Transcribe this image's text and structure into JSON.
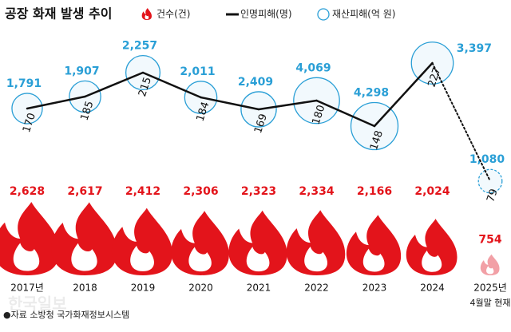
{
  "chart_data": {
    "type": "combo",
    "title": "공장 화재 발생 추이",
    "categories": [
      "2017년",
      "2018",
      "2019",
      "2020",
      "2021",
      "2022",
      "2023",
      "2024",
      "2025년"
    ],
    "category_note": "4월말 현재",
    "series": [
      {
        "name": "건수(건)",
        "type": "flame",
        "color": "#e3141b",
        "values": [
          2628,
          2617,
          2412,
          2306,
          2323,
          2334,
          2166,
          2024,
          754
        ],
        "value_labels": [
          "2,628",
          "2,617",
          "2,412",
          "2,306",
          "2,323",
          "2,334",
          "2,166",
          "2,024",
          "754"
        ]
      },
      {
        "name": "인명피해(명)",
        "type": "line",
        "color": "#111111",
        "values": [
          170,
          185,
          215,
          184,
          169,
          180,
          148,
          227,
          79
        ]
      },
      {
        "name": "재산피해(억 원)",
        "type": "bubble",
        "color": "#2a9fd6",
        "values": [
          1791,
          1907,
          2257,
          2011,
          2409,
          4069,
          4298,
          3397,
          1080
        ],
        "value_labels": [
          "1,791",
          "1,907",
          "2,257",
          "2,011",
          "2,409",
          "4,069",
          "4,298",
          "3,397",
          "1,080"
        ]
      }
    ],
    "source": "●자료 소방청 국가화재정보시스템",
    "watermark": "한국일보"
  }
}
